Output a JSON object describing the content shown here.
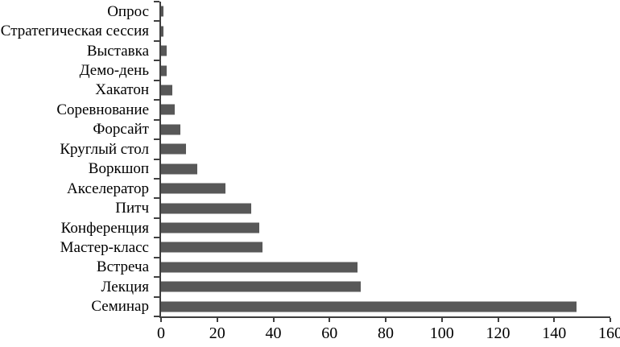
{
  "chart_data": {
    "type": "bar",
    "orientation": "horizontal",
    "title": "",
    "xlabel": "",
    "ylabel": "",
    "categories_top_to_bottom": [
      "Опрос",
      "Стратегическая сессия",
      "Выставка",
      "Демо-день",
      "Хакатон",
      "Соревнование",
      "Форсайт",
      "Круглый стол",
      "Воркшоп",
      "Акселератор",
      "Питч",
      "Конференция",
      "Мастер-класс",
      "Встреча",
      "Лекция",
      "Семинар"
    ],
    "values": [
      1,
      1,
      2,
      2,
      4,
      5,
      7,
      9,
      13,
      23,
      32,
      35,
      36,
      70,
      71,
      148
    ],
    "x_ticks": [
      0,
      20,
      40,
      60,
      80,
      100,
      120,
      140,
      160
    ],
    "xlim": [
      0,
      160
    ],
    "grid": false,
    "legend": false,
    "bar_color": "#585858",
    "axis_color": "#3f3f3f",
    "text_color": "#000000",
    "background_color": "#ffffff"
  }
}
